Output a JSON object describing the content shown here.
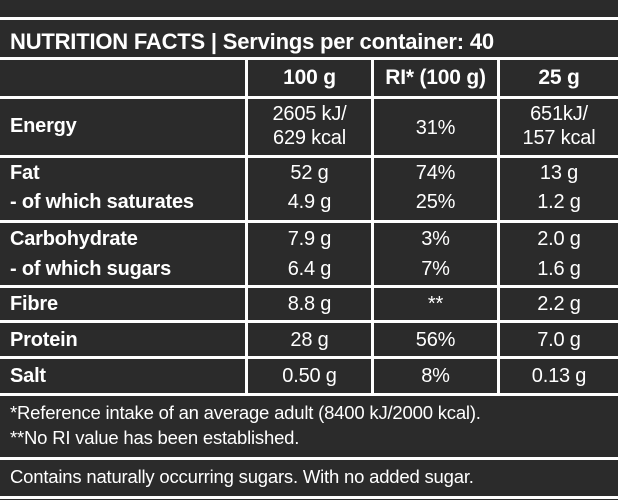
{
  "title": "NUTRITION FACTS | Servings per container: 40",
  "columns": [
    "100 g",
    "RI* (100 g)",
    "25 g"
  ],
  "rows": [
    {
      "label": "Energy",
      "c1": [
        "2605 kJ/",
        "629 kcal"
      ],
      "c2": "31%",
      "c3": [
        "651kJ/",
        "157 kcal"
      ]
    },
    {
      "label": "Fat",
      "c1": "52 g",
      "c2": "74%",
      "c3": "13 g"
    },
    {
      "label": "- of which saturates",
      "c1": "4.9 g",
      "c2": "25%",
      "c3": "1.2 g"
    },
    {
      "label": "Carbohydrate",
      "c1": "7.9 g",
      "c2": "3%",
      "c3": "2.0 g"
    },
    {
      "label": "- of which sugars",
      "c1": "6.4 g",
      "c2": "7%",
      "c3": "1.6 g"
    },
    {
      "label": "Fibre",
      "c1": "8.8 g",
      "c2": "**",
      "c3": "2.2 g"
    },
    {
      "label": "Protein",
      "c1": "28 g",
      "c2": "56%",
      "c3": "7.0 g"
    },
    {
      "label": "Salt",
      "c1": "0.50 g",
      "c2": "8%",
      "c3": "0.13 g"
    }
  ],
  "footnotes": [
    "*Reference intake of an average adult (8400 kJ/2000 kcal).",
    "**No RI value has been established."
  ],
  "bottom_note": "Contains naturally occurring sugars. With no added sugar.",
  "colors": {
    "background": "#2b2b2b",
    "text": "#ffffff",
    "rules": "#ffffff"
  }
}
